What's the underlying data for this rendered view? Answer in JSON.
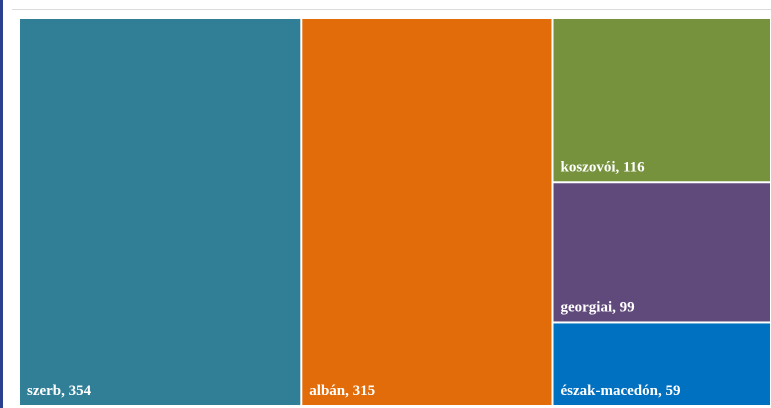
{
  "chart_data": {
    "type": "treemap",
    "items": [
      {
        "name": "szerb",
        "value": 354,
        "color": "#317f97"
      },
      {
        "name": "albán",
        "value": 315,
        "color": "#e36c0a"
      },
      {
        "name": "koszovói",
        "value": 116,
        "color": "#76923c"
      },
      {
        "name": "georgiai",
        "value": 99,
        "color": "#604a7b"
      },
      {
        "name": "észak-macedón",
        "value": 59,
        "color": "#0070c0"
      }
    ],
    "label_format": "{name},  {value}"
  }
}
